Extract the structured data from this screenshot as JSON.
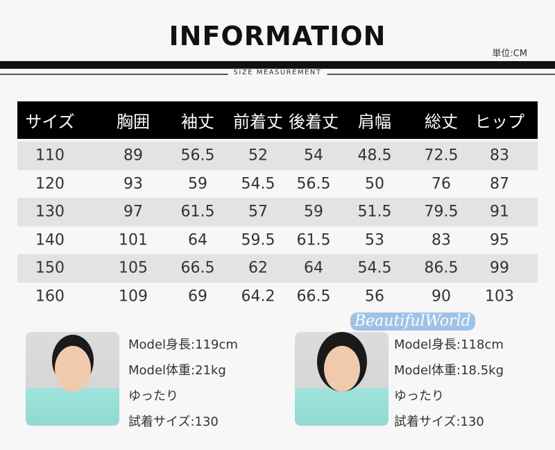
{
  "title": "INFORMATION",
  "unit": "単位:CM",
  "subtitle": "SIZE MEASUREMENT",
  "table": {
    "headers": [
      "サイズ",
      "胸囲",
      "袖丈",
      "前着丈",
      "後着丈",
      "肩幅",
      "総丈",
      "ヒップ"
    ],
    "rows": [
      [
        "110",
        "89",
        "56.5",
        "52",
        "54",
        "48.5",
        "72.5",
        "83"
      ],
      [
        "120",
        "93",
        "59",
        "54.5",
        "56.5",
        "50",
        "76",
        "87"
      ],
      [
        "130",
        "97",
        "61.5",
        "57",
        "59",
        "51.5",
        "79.5",
        "91"
      ],
      [
        "140",
        "101",
        "64",
        "59.5",
        "61.5",
        "53",
        "83",
        "95"
      ],
      [
        "150",
        "105",
        "66.5",
        "62",
        "64",
        "54.5",
        "86.5",
        "99"
      ],
      [
        "160",
        "109",
        "69",
        "64.2",
        "66.5",
        "56",
        "90",
        "103"
      ]
    ]
  },
  "models": [
    {
      "height": "Model身長:119cm",
      "weight": "Model体重:21kg",
      "fit": "ゆったり",
      "size": "試着サイズ:130"
    },
    {
      "height": "Model身長:118cm",
      "weight": "Model体重:18.5kg",
      "fit": "ゆったり",
      "size": "試着サイズ:130"
    }
  ],
  "watermark": "BeautifulWorld"
}
